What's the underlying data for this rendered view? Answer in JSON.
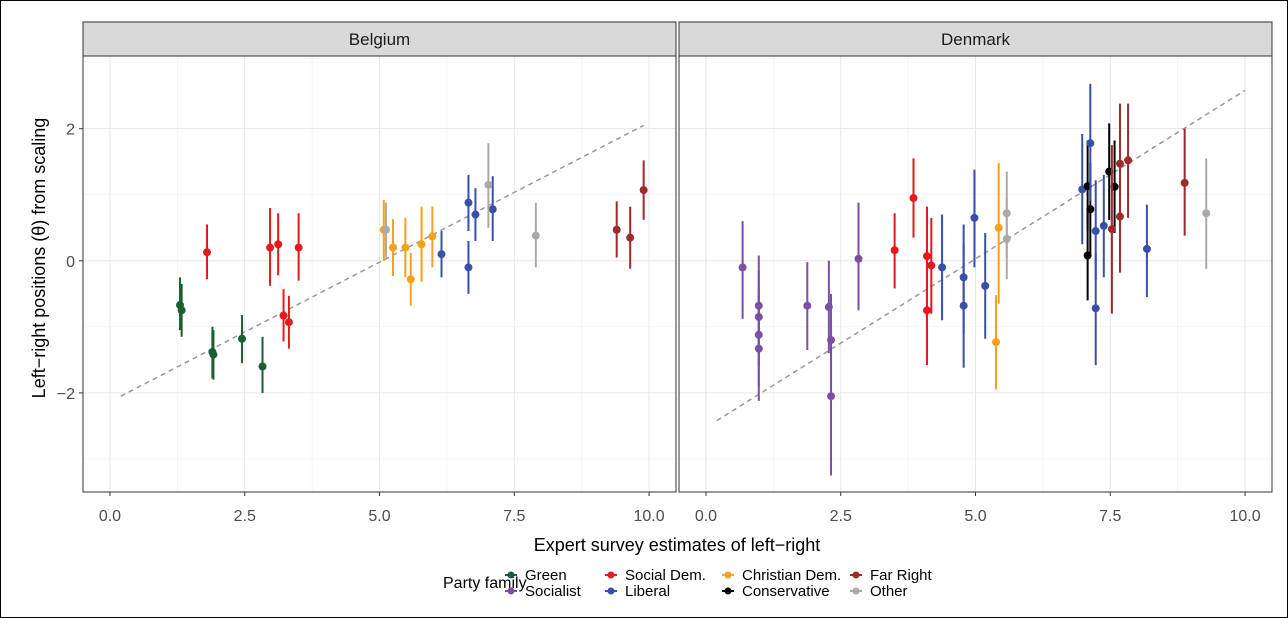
{
  "chart_data": {
    "type": "scatter",
    "xlabel": "Expert survey estimates of left−right",
    "ylabel": "Left−right positions (θ) from scaling",
    "xlim": [
      -0.5,
      10.5
    ],
    "ylim": [
      -3.5,
      3.1
    ],
    "x_ticks": [
      0,
      2.5,
      5,
      7.5,
      10
    ],
    "x_tick_labels": [
      "0.0",
      "2.5",
      "5.0",
      "7.5",
      "10.0"
    ],
    "y_ticks": [
      -2,
      0,
      2
    ],
    "y_tick_labels": [
      "−2",
      "0",
      "2"
    ],
    "grid": true,
    "legend": {
      "title": "Party family",
      "position": "bottom",
      "entries": [
        {
          "key": "green",
          "label": "Green",
          "color": "#1a5e34"
        },
        {
          "key": "socialist",
          "label": "Socialist",
          "color": "#7b4fa3"
        },
        {
          "key": "socdem",
          "label": "Social Dem.",
          "color": "#e41a1c"
        },
        {
          "key": "liberal",
          "label": "Liberal",
          "color": "#3a50a8"
        },
        {
          "key": "chrdem",
          "label": "Christian Dem.",
          "color": "#f5a11c"
        },
        {
          "key": "conservative",
          "label": "Conservative",
          "color": "#000000"
        },
        {
          "key": "farright",
          "label": "Far Right",
          "color": "#9e2a2b"
        },
        {
          "key": "other",
          "label": "Other",
          "color": "#aaaaaa"
        }
      ]
    },
    "panels": [
      {
        "title": "Belgium",
        "trend": {
          "x": [
            0.2,
            9.9
          ],
          "y": [
            -2.05,
            2.05
          ]
        },
        "points": [
          {
            "family": "green",
            "x": 1.3,
            "y": -0.67,
            "lo": -1.05,
            "hi": -0.25
          },
          {
            "family": "green",
            "x": 1.33,
            "y": -0.75,
            "lo": -1.15,
            "hi": -0.35
          },
          {
            "family": "green",
            "x": 1.9,
            "y": -1.38,
            "lo": -1.78,
            "hi": -1.0
          },
          {
            "family": "green",
            "x": 1.92,
            "y": -1.42,
            "lo": -1.8,
            "hi": -1.05
          },
          {
            "family": "green",
            "x": 2.45,
            "y": -1.18,
            "lo": -1.55,
            "hi": -0.82
          },
          {
            "family": "green",
            "x": 2.83,
            "y": -1.6,
            "lo": -2.0,
            "hi": -1.15
          },
          {
            "family": "socdem",
            "x": 1.8,
            "y": 0.13,
            "lo": -0.28,
            "hi": 0.55
          },
          {
            "family": "socdem",
            "x": 2.97,
            "y": 0.2,
            "lo": -0.38,
            "hi": 0.8
          },
          {
            "family": "socdem",
            "x": 3.12,
            "y": 0.25,
            "lo": -0.22,
            "hi": 0.72
          },
          {
            "family": "socdem",
            "x": 3.22,
            "y": -0.83,
            "lo": -1.22,
            "hi": -0.43
          },
          {
            "family": "socdem",
            "x": 3.32,
            "y": -0.93,
            "lo": -1.33,
            "hi": -0.53
          },
          {
            "family": "socdem",
            "x": 3.5,
            "y": 0.2,
            "lo": -0.3,
            "hi": 0.72
          },
          {
            "family": "chrdem",
            "x": 5.08,
            "y": 0.47,
            "lo": 0.0,
            "hi": 0.92
          },
          {
            "family": "chrdem",
            "x": 5.25,
            "y": 0.2,
            "lo": -0.23,
            "hi": 0.63
          },
          {
            "family": "chrdem",
            "x": 5.48,
            "y": 0.2,
            "lo": -0.25,
            "hi": 0.65
          },
          {
            "family": "chrdem",
            "x": 5.58,
            "y": -0.28,
            "lo": -0.68,
            "hi": 0.12
          },
          {
            "family": "chrdem",
            "x": 5.78,
            "y": 0.25,
            "lo": -0.32,
            "hi": 0.82
          },
          {
            "family": "chrdem",
            "x": 5.98,
            "y": 0.37,
            "lo": -0.1,
            "hi": 0.82
          },
          {
            "family": "other",
            "x": 5.12,
            "y": 0.47,
            "lo": 0.05,
            "hi": 0.88
          },
          {
            "family": "liberal",
            "x": 6.15,
            "y": 0.1,
            "lo": -0.25,
            "hi": 0.45
          },
          {
            "family": "liberal",
            "x": 6.65,
            "y": 0.88,
            "lo": 0.45,
            "hi": 1.3
          },
          {
            "family": "liberal",
            "x": 6.65,
            "y": -0.1,
            "lo": -0.5,
            "hi": 0.3
          },
          {
            "family": "liberal",
            "x": 6.78,
            "y": 0.7,
            "lo": 0.3,
            "hi": 1.1
          },
          {
            "family": "liberal",
            "x": 7.1,
            "y": 0.78,
            "lo": 0.3,
            "hi": 1.28
          },
          {
            "family": "other",
            "x": 7.02,
            "y": 1.15,
            "lo": 0.5,
            "hi": 1.78
          },
          {
            "family": "other",
            "x": 7.9,
            "y": 0.38,
            "lo": -0.1,
            "hi": 0.88
          },
          {
            "family": "farright",
            "x": 9.4,
            "y": 0.47,
            "lo": 0.05,
            "hi": 0.9
          },
          {
            "family": "farright",
            "x": 9.65,
            "y": 0.35,
            "lo": -0.12,
            "hi": 0.82
          },
          {
            "family": "farright",
            "x": 9.9,
            "y": 1.07,
            "lo": 0.62,
            "hi": 1.52
          }
        ]
      },
      {
        "title": "Denmark",
        "trend": {
          "x": [
            0.2,
            10.0
          ],
          "y": [
            -2.42,
            2.58
          ]
        },
        "points": [
          {
            "family": "socialist",
            "x": 0.68,
            "y": -0.1,
            "lo": -0.88,
            "hi": 0.6
          },
          {
            "family": "socialist",
            "x": 0.98,
            "y": -0.68,
            "lo": -1.38,
            "hi": 0.08
          },
          {
            "family": "socialist",
            "x": 0.98,
            "y": -0.85,
            "lo": -1.6,
            "hi": -0.15
          },
          {
            "family": "socialist",
            "x": 0.98,
            "y": -1.12,
            "lo": -1.9,
            "hi": -0.4
          },
          {
            "family": "socialist",
            "x": 0.98,
            "y": -1.33,
            "lo": -2.12,
            "hi": -0.6
          },
          {
            "family": "socialist",
            "x": 1.88,
            "y": -0.68,
            "lo": -1.35,
            "hi": -0.02
          },
          {
            "family": "socialist",
            "x": 2.28,
            "y": -0.7,
            "lo": -1.4,
            "hi": 0.0
          },
          {
            "family": "socialist",
            "x": 2.32,
            "y": -1.2,
            "lo": -1.9,
            "hi": -0.5
          },
          {
            "family": "socialist",
            "x": 2.32,
            "y": -2.05,
            "lo": -3.25,
            "hi": -0.9
          },
          {
            "family": "socialist",
            "x": 2.83,
            "y": 0.03,
            "lo": -0.75,
            "hi": 0.88
          },
          {
            "family": "socdem",
            "x": 3.5,
            "y": 0.16,
            "lo": -0.42,
            "hi": 0.72
          },
          {
            "family": "socdem",
            "x": 3.85,
            "y": 0.95,
            "lo": 0.35,
            "hi": 1.55
          },
          {
            "family": "socdem",
            "x": 4.1,
            "y": 0.07,
            "lo": -0.65,
            "hi": 0.82
          },
          {
            "family": "socdem",
            "x": 4.1,
            "y": -0.75,
            "lo": -1.58,
            "hi": 0.1
          },
          {
            "family": "socdem",
            "x": 4.18,
            "y": -0.07,
            "lo": -0.8,
            "hi": 0.65
          },
          {
            "family": "liberal",
            "x": 4.38,
            "y": -0.1,
            "lo": -0.9,
            "hi": 0.7
          },
          {
            "family": "liberal",
            "x": 4.78,
            "y": -0.25,
            "lo": -1.1,
            "hi": 0.55
          },
          {
            "family": "liberal",
            "x": 4.78,
            "y": -0.68,
            "lo": -1.62,
            "hi": 0.25
          },
          {
            "family": "liberal",
            "x": 4.98,
            "y": 0.65,
            "lo": -0.1,
            "hi": 1.38
          },
          {
            "family": "liberal",
            "x": 5.18,
            "y": -0.38,
            "lo": -1.18,
            "hi": 0.42
          },
          {
            "family": "chrdem",
            "x": 5.38,
            "y": -1.23,
            "lo": -1.95,
            "hi": -0.52
          },
          {
            "family": "chrdem",
            "x": 5.43,
            "y": 0.5,
            "lo": -0.65,
            "hi": 1.48
          },
          {
            "family": "other",
            "x": 5.58,
            "y": 0.72,
            "lo": 0.05,
            "hi": 1.35
          },
          {
            "family": "other",
            "x": 5.58,
            "y": 0.33,
            "lo": -0.28,
            "hi": 0.95
          },
          {
            "family": "liberal",
            "x": 6.98,
            "y": 1.08,
            "lo": 0.25,
            "hi": 1.92
          },
          {
            "family": "conservative",
            "x": 7.08,
            "y": 1.13,
            "lo": 0.45,
            "hi": 1.82
          },
          {
            "family": "conservative",
            "x": 7.08,
            "y": 0.08,
            "lo": -0.6,
            "hi": 0.75
          },
          {
            "family": "conservative",
            "x": 7.13,
            "y": 0.78,
            "lo": 0.1,
            "hi": 1.48
          },
          {
            "family": "liberal",
            "x": 7.13,
            "y": 1.78,
            "lo": 0.9,
            "hi": 2.68
          },
          {
            "family": "liberal",
            "x": 7.23,
            "y": 0.45,
            "lo": -0.3,
            "hi": 1.22
          },
          {
            "family": "liberal",
            "x": 7.23,
            "y": -0.72,
            "lo": -1.58,
            "hi": 0.12
          },
          {
            "family": "liberal",
            "x": 7.38,
            "y": 0.53,
            "lo": -0.25,
            "hi": 1.3
          },
          {
            "family": "conservative",
            "x": 7.48,
            "y": 1.35,
            "lo": 0.62,
            "hi": 2.08
          },
          {
            "family": "conservative",
            "x": 7.58,
            "y": 1.12,
            "lo": 0.42,
            "hi": 1.82
          },
          {
            "family": "farright",
            "x": 7.53,
            "y": 0.48,
            "lo": -0.8,
            "hi": 1.75
          },
          {
            "family": "farright",
            "x": 7.68,
            "y": 0.67,
            "lo": -0.18,
            "hi": 1.5
          },
          {
            "family": "farright",
            "x": 7.68,
            "y": 1.47,
            "lo": 0.55,
            "hi": 2.38
          },
          {
            "family": "farright",
            "x": 7.83,
            "y": 1.52,
            "lo": 0.65,
            "hi": 2.38
          },
          {
            "family": "liberal",
            "x": 8.18,
            "y": 0.18,
            "lo": -0.55,
            "hi": 0.85
          },
          {
            "family": "farright",
            "x": 8.88,
            "y": 1.18,
            "lo": 0.38,
            "hi": 2.0
          },
          {
            "family": "other",
            "x": 9.28,
            "y": 0.72,
            "lo": -0.12,
            "hi": 1.55
          }
        ]
      }
    ]
  }
}
